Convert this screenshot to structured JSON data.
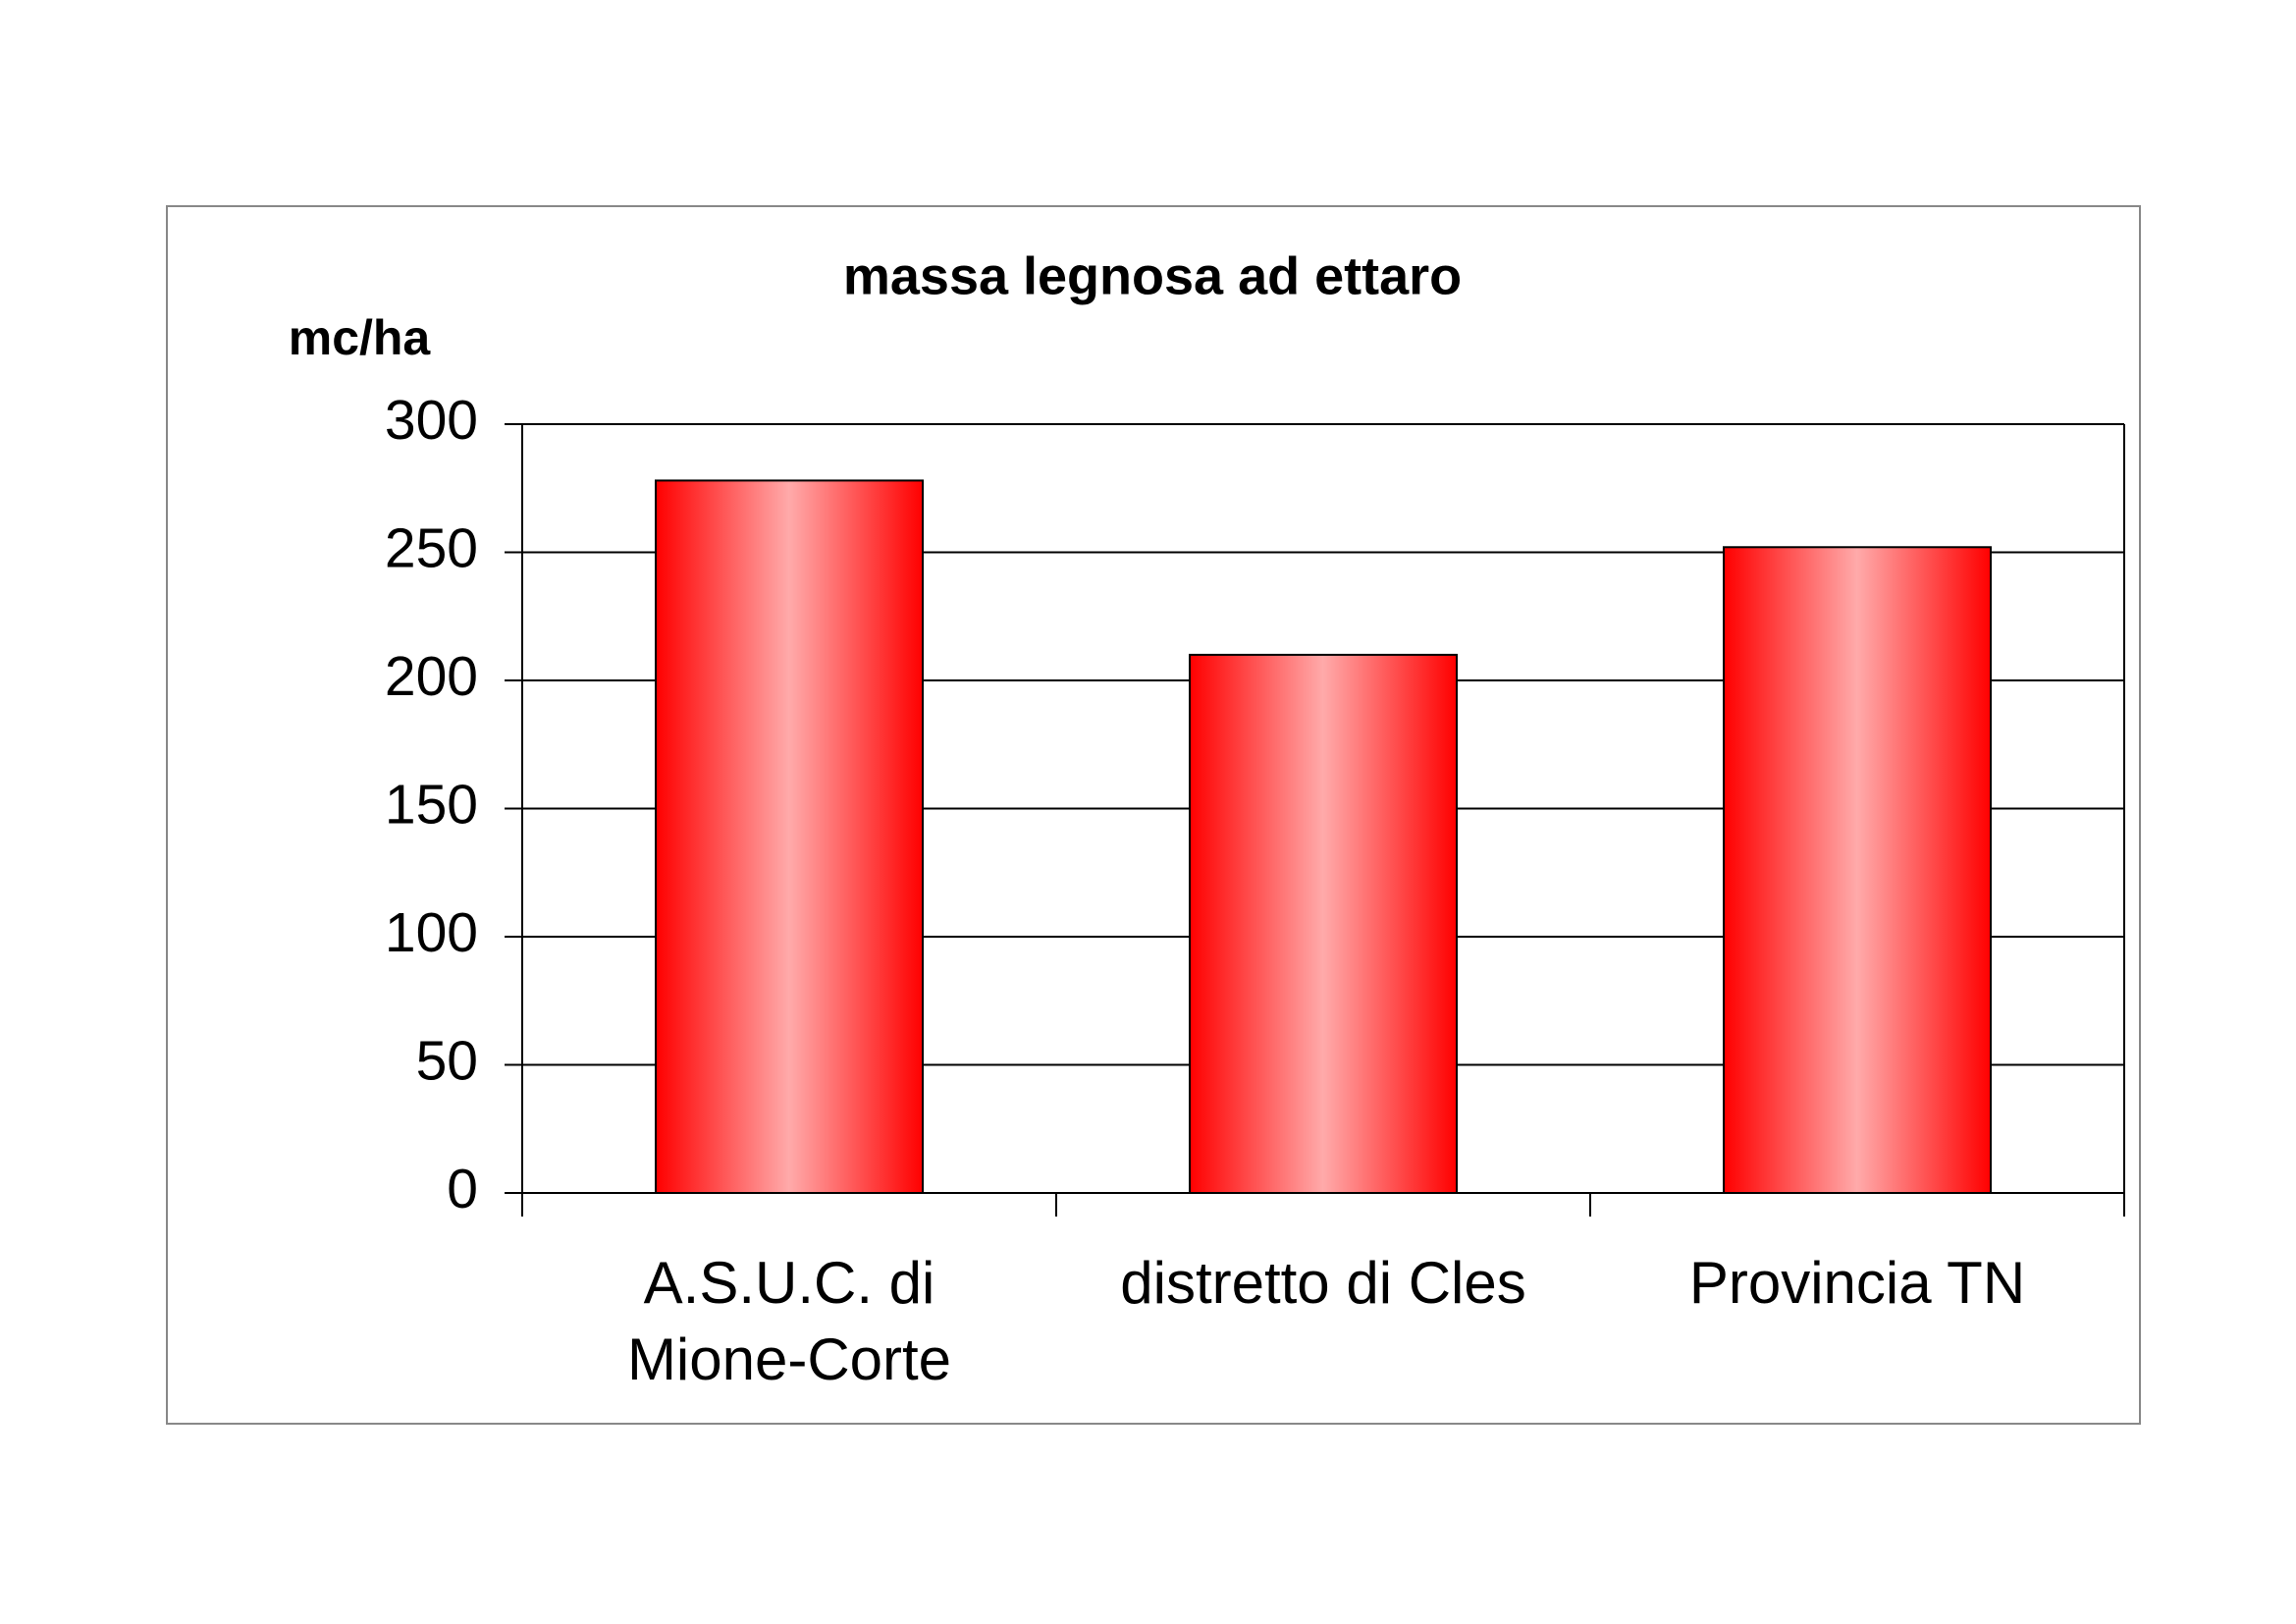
{
  "chart_data": {
    "type": "bar",
    "title": "massa legnosa ad ettaro",
    "y_label": "mc/ha",
    "categories": [
      "A.S.U.C. di Mione-Corte",
      "distretto di Cles",
      "Provincia TN"
    ],
    "values": [
      278,
      210,
      252
    ],
    "color": "#ff0000",
    "ylim": [
      0,
      300
    ],
    "yticks": [
      0,
      50,
      100,
      150,
      200,
      250,
      300
    ],
    "grid": true
  }
}
